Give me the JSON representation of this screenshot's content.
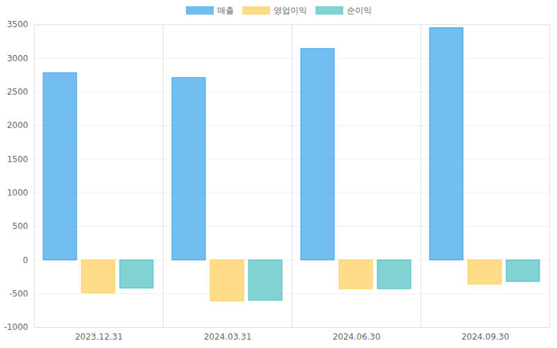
{
  "chart_data": {
    "type": "bar",
    "categories": [
      "2023.12.31",
      "2024.03.31",
      "2024.06.30",
      "2024.09.30"
    ],
    "series": [
      {
        "name": "매출",
        "color": "#36a2eb",
        "values": [
          2780,
          2710,
          3140,
          3450
        ]
      },
      {
        "name": "영업이익",
        "color": "#ffcd56",
        "values": [
          -490,
          -610,
          -430,
          -360
        ]
      },
      {
        "name": "순이익",
        "color": "#4bc0c0",
        "values": [
          -420,
          -600,
          -430,
          -320
        ]
      }
    ],
    "ylim": [
      -1000,
      3500
    ],
    "yticks": [
      -1000,
      -500,
      0,
      500,
      1000,
      1500,
      2000,
      2500,
      3000,
      3500
    ],
    "grid": true,
    "legend": "top"
  }
}
